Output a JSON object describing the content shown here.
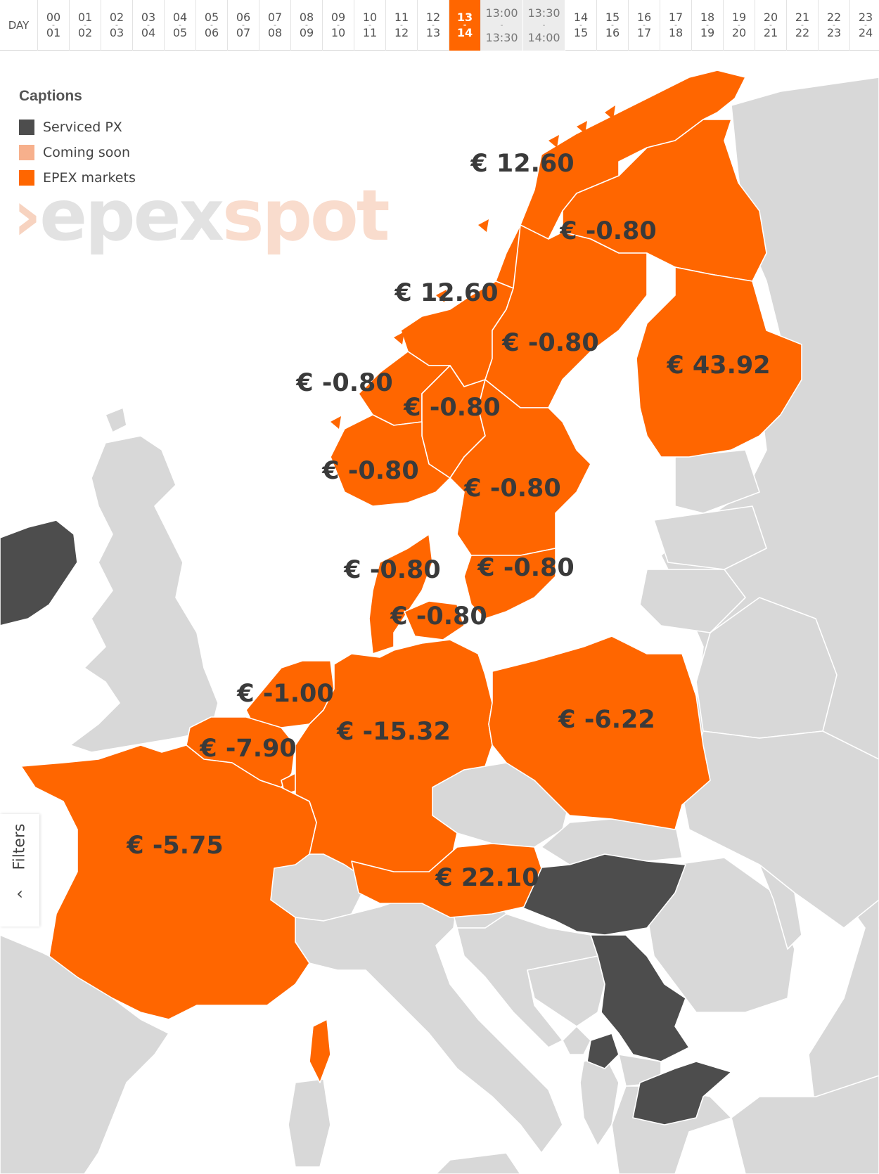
{
  "timebar": {
    "day_label": "DAY",
    "slots_before": [
      {
        "from": "00",
        "to": "01"
      },
      {
        "from": "01",
        "to": "02"
      },
      {
        "from": "02",
        "to": "03"
      },
      {
        "from": "03",
        "to": "04"
      },
      {
        "from": "04",
        "to": "05"
      },
      {
        "from": "05",
        "to": "06"
      },
      {
        "from": "06",
        "to": "07"
      },
      {
        "from": "07",
        "to": "08"
      },
      {
        "from": "08",
        "to": "09"
      },
      {
        "from": "09",
        "to": "10"
      },
      {
        "from": "10",
        "to": "11"
      },
      {
        "from": "11",
        "to": "12"
      },
      {
        "from": "12",
        "to": "13"
      }
    ],
    "active_slot": {
      "from": "13",
      "to": "14"
    },
    "sub_slots": [
      {
        "from": "13:00",
        "to": "13:30"
      },
      {
        "from": "13:30",
        "to": "14:00"
      }
    ],
    "slots_after": [
      {
        "from": "14",
        "to": "15"
      },
      {
        "from": "15",
        "to": "16"
      },
      {
        "from": "16",
        "to": "17"
      },
      {
        "from": "17",
        "to": "18"
      },
      {
        "from": "18",
        "to": "19"
      },
      {
        "from": "19",
        "to": "20"
      },
      {
        "from": "20",
        "to": "21"
      },
      {
        "from": "21",
        "to": "22"
      },
      {
        "from": "22",
        "to": "23"
      },
      {
        "from": "23",
        "to": "24"
      }
    ],
    "separator": "-"
  },
  "legend": {
    "title": "Captions",
    "items": [
      {
        "label": "Serviced PX",
        "color": "#4d4d4d"
      },
      {
        "label": "Coming soon",
        "color": "#f7b08c"
      },
      {
        "label": "EPEX markets",
        "color": "#ff6600"
      }
    ]
  },
  "logo": {
    "chevron": "›",
    "part1": "epex",
    "part2": "spot"
  },
  "filters": {
    "label": "Filters",
    "chevron": "‹"
  },
  "colors": {
    "epex": "#ff6600",
    "serviced": "#4d4d4d",
    "land": "#d8d8d8",
    "sea": "#ffffff",
    "border": "#ffffff"
  },
  "prices": {
    "no4": "€ 12.60",
    "se1": "€ -0.80",
    "no3": "€ 12.60",
    "se2": "€ -0.80",
    "fi": "€ 43.92",
    "no5": "€ -0.80",
    "no1": "€ -0.80",
    "no2": "€ -0.80",
    "se3": "€ -0.80",
    "dk1": "€ -0.80",
    "se4": "€ -0.80",
    "dk2": "€ -0.80",
    "nl": "€ -1.00",
    "de": "€ -15.32",
    "pl": "€ -6.22",
    "be": "€ -7.90",
    "fr": "€ -5.75",
    "at": "€ 22.10"
  }
}
